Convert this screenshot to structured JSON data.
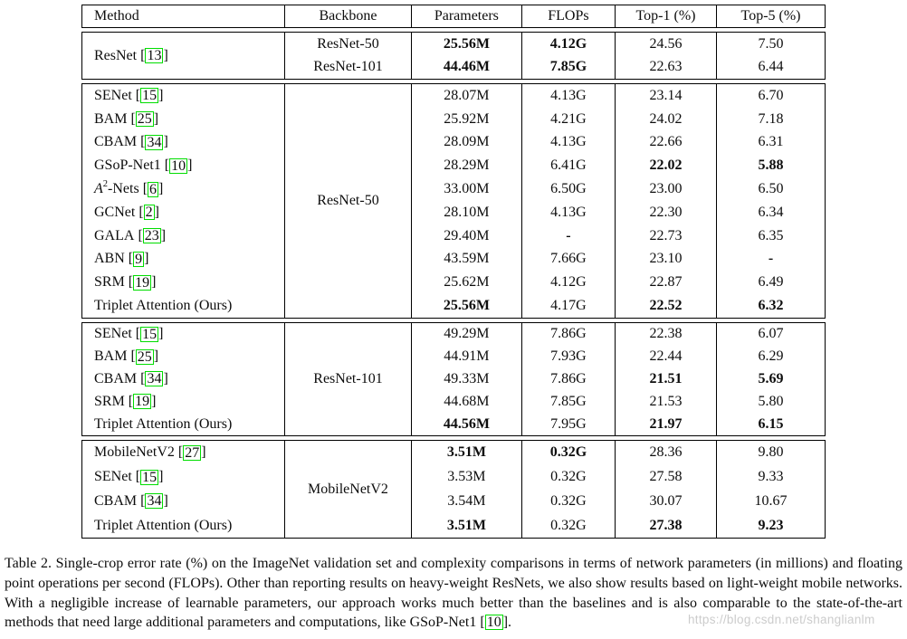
{
  "table": {
    "headers": [
      "Method",
      "Backbone",
      "Parameters",
      "FLOPs",
      "Top-1 (%)",
      "Top-5 (%)"
    ],
    "groups": [
      {
        "name": "resnet-baselines",
        "method_span": {
          "label": "ResNet",
          "cite": "13"
        },
        "rows": [
          {
            "backbone": "ResNet-50",
            "values": [
              "25.56M",
              "4.12G",
              "24.56",
              "7.50"
            ],
            "bold": [
              true,
              true,
              false,
              false
            ]
          },
          {
            "backbone": "ResNet-101",
            "values": [
              "44.46M",
              "7.85G",
              "22.63",
              "6.44"
            ],
            "bold": [
              true,
              true,
              false,
              false
            ]
          }
        ]
      },
      {
        "name": "resnet50-methods",
        "backbone_span": "ResNet-50",
        "rows": [
          {
            "method": "SENet",
            "cite": "15",
            "values": [
              "28.07M",
              "4.13G",
              "23.14",
              "6.70"
            ],
            "bold": [
              false,
              false,
              false,
              false
            ]
          },
          {
            "method": "BAM",
            "cite": "25",
            "values": [
              "25.92M",
              "4.21G",
              "24.02",
              "7.18"
            ],
            "bold": [
              false,
              false,
              false,
              false
            ]
          },
          {
            "method": "CBAM",
            "cite": "34",
            "values": [
              "28.09M",
              "4.13G",
              "22.66",
              "6.31"
            ],
            "bold": [
              false,
              false,
              false,
              false
            ]
          },
          {
            "method": "GSoP-Net1",
            "cite": "10",
            "values": [
              "28.29M",
              "6.41G",
              "22.02",
              "5.88"
            ],
            "bold": [
              false,
              false,
              true,
              true
            ]
          },
          {
            "method": "A²-Nets",
            "cite": "6",
            "math": true,
            "values": [
              "33.00M",
              "6.50G",
              "23.00",
              "6.50"
            ],
            "bold": [
              false,
              false,
              false,
              false
            ]
          },
          {
            "method": "GCNet",
            "cite": "2",
            "values": [
              "28.10M",
              "4.13G",
              "22.30",
              "6.34"
            ],
            "bold": [
              false,
              false,
              false,
              false
            ]
          },
          {
            "method": "GALA",
            "cite": "23",
            "values": [
              "29.40M",
              "-",
              "22.73",
              "6.35"
            ],
            "bold": [
              false,
              true,
              false,
              false
            ]
          },
          {
            "method": "ABN",
            "cite": "9",
            "values": [
              "43.59M",
              "7.66G",
              "23.10",
              "-"
            ],
            "bold": [
              false,
              false,
              false,
              true
            ]
          },
          {
            "method": "SRM",
            "cite": "19",
            "values": [
              "25.62M",
              "4.12G",
              "22.87",
              "6.49"
            ],
            "bold": [
              false,
              false,
              false,
              false
            ]
          },
          {
            "method": "Triplet Attention (Ours)",
            "values": [
              "25.56M",
              "4.17G",
              "22.52",
              "6.32"
            ],
            "bold": [
              true,
              false,
              true,
              true
            ]
          }
        ]
      },
      {
        "name": "resnet101-methods",
        "backbone_span": "ResNet-101",
        "rows": [
          {
            "method": "SENet",
            "cite": "15",
            "values": [
              "49.29M",
              "7.86G",
              "22.38",
              "6.07"
            ],
            "bold": [
              false,
              false,
              false,
              false
            ]
          },
          {
            "method": "BAM",
            "cite": "25",
            "values": [
              "44.91M",
              "7.93G",
              "22.44",
              "6.29"
            ],
            "bold": [
              false,
              false,
              false,
              false
            ]
          },
          {
            "method": "CBAM",
            "cite": "34",
            "values": [
              "49.33M",
              "7.86G",
              "21.51",
              "5.69"
            ],
            "bold": [
              false,
              false,
              true,
              true
            ]
          },
          {
            "method": "SRM",
            "cite": "19",
            "values": [
              "44.68M",
              "7.85G",
              "21.53",
              "5.80"
            ],
            "bold": [
              false,
              false,
              false,
              false
            ]
          },
          {
            "method": "Triplet Attention (Ours)",
            "values": [
              "44.56M",
              "7.95G",
              "21.97",
              "6.15"
            ],
            "bold": [
              true,
              false,
              true,
              true
            ]
          }
        ]
      },
      {
        "name": "mobilenet-methods",
        "backbone_span": "MobileNetV2",
        "rows": [
          {
            "method": "MobileNetV2",
            "cite": "27",
            "values": [
              "3.51M",
              "0.32G",
              "28.36",
              "9.80"
            ],
            "bold": [
              true,
              true,
              false,
              false
            ]
          },
          {
            "method": "SENet",
            "cite": "15",
            "values": [
              "3.53M",
              "0.32G",
              "27.58",
              "9.33"
            ],
            "bold": [
              false,
              false,
              false,
              false
            ]
          },
          {
            "method": "CBAM",
            "cite": "34",
            "values": [
              "3.54M",
              "0.32G",
              "30.07",
              "10.67"
            ],
            "bold": [
              false,
              false,
              false,
              false
            ]
          },
          {
            "method": "Triplet Attention (Ours)",
            "values": [
              "3.51M",
              "0.32G",
              "27.38",
              "9.23"
            ],
            "bold": [
              true,
              false,
              true,
              true
            ]
          }
        ]
      }
    ]
  },
  "caption": {
    "before": "Table 2. Single-crop error rate (%) on the ImageNet validation set and complexity comparisons in terms of network parameters (in millions) and floating point operations per second (FLOPs). Other than reporting results on heavy-weight ResNets, we also show results based on light-weight mobile networks. With a negligible increase of learnable parameters, our approach works much better than the baselines and is also comparable to the state-of-the-art methods that need large additional parameters and computations, like GSoP-Net1 [",
    "cite": "10",
    "after": "]."
  },
  "watermark": {
    "text": "https://blog.csdn.net/shanglianlm"
  },
  "colors": {
    "citation_box": "#00DD00",
    "watermark_text": "#CCCCCC",
    "table_border": "#000000",
    "page_background": "#FFFFFF"
  }
}
